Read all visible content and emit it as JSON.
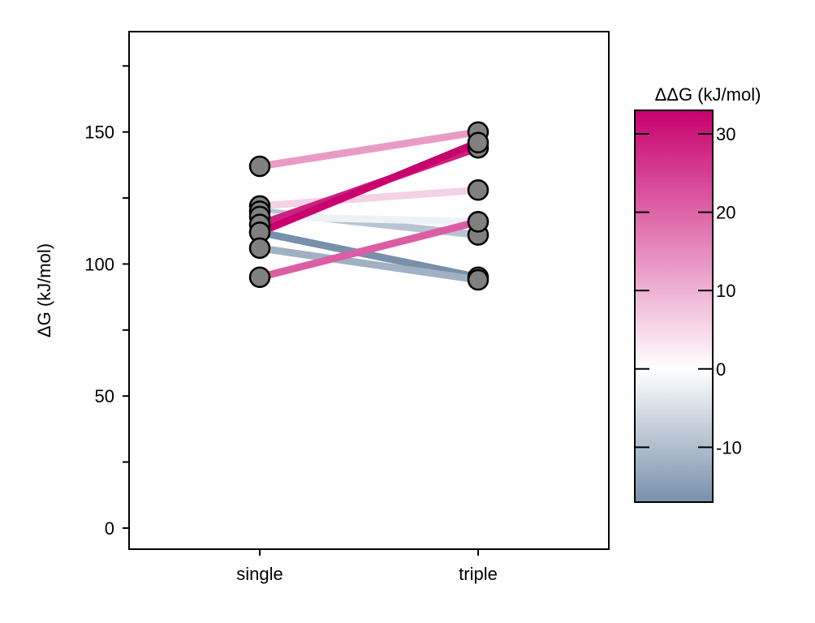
{
  "chart_data": {
    "type": "line",
    "title": "",
    "xlabel": "",
    "ylabel": "ΔG (kJ/mol)",
    "categories": [
      "single",
      "triple"
    ],
    "ylim": [
      -8,
      188
    ],
    "yticks": [
      0,
      50,
      100,
      150
    ],
    "yminor_ticks": [
      25,
      75,
      125,
      175
    ],
    "grid": false,
    "marker_color": "#808080",
    "colorbar": {
      "title": "ΔΔG (kJ/mol)",
      "range": [
        -17,
        33
      ],
      "ticks": [
        -10,
        0,
        10,
        20,
        30
      ],
      "tick_labels": [
        "-10",
        "0",
        "10",
        "20",
        "30"
      ],
      "color_min": "#7890aa",
      "color_zero": "#ffffff",
      "color_max": "#c8006e"
    },
    "series": [
      {
        "values": [
          137,
          150
        ],
        "delta": 13
      },
      {
        "values": [
          122,
          128
        ],
        "delta": 6
      },
      {
        "values": [
          120,
          111
        ],
        "delta": -9
      },
      {
        "values": [
          118,
          116
        ],
        "delta": -2
      },
      {
        "values": [
          115,
          144
        ],
        "delta": 29
      },
      {
        "values": [
          112,
          146
        ],
        "delta": 34
      },
      {
        "values": [
          112,
          95
        ],
        "delta": -17
      },
      {
        "values": [
          106,
          94
        ],
        "delta": -12
      },
      {
        "values": [
          95,
          116
        ],
        "delta": 21
      }
    ]
  }
}
